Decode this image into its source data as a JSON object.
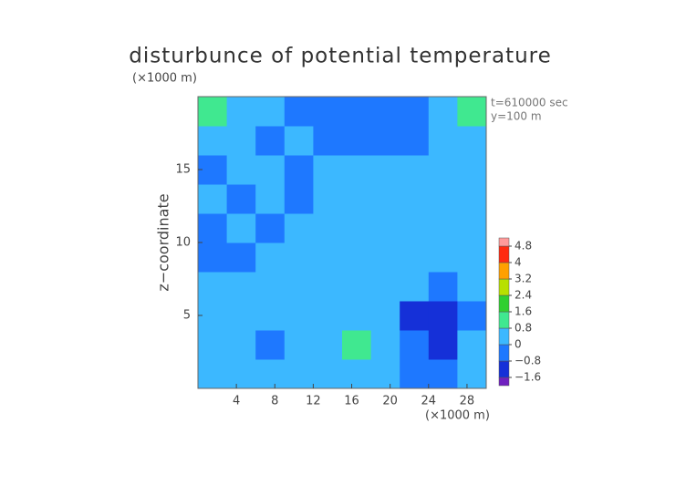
{
  "chart_data": {
    "type": "contour",
    "title": "disturbunce of potential temperature",
    "y_unit": "(×1000 m)",
    "x_unit": "(×1000 m)",
    "ylabel": "z−coordinate",
    "annotations": [
      "t=610000 sec",
      "y=100 m"
    ],
    "xlim": [
      0,
      30
    ],
    "ylim": [
      0,
      20
    ],
    "xticks": [
      4,
      8,
      12,
      16,
      20,
      24,
      28
    ],
    "yticks": [
      5,
      10,
      15
    ],
    "x": [
      1.5,
      4.5,
      7.5,
      10.5,
      13.5,
      16.5,
      19.5,
      22.5,
      25.5,
      28.5
    ],
    "z": [
      1,
      3,
      5,
      7,
      9,
      11,
      13,
      15,
      17,
      19
    ],
    "values": [
      [
        0.2,
        0.3,
        0.5,
        0.4,
        0.2,
        0.3,
        0.1,
        -0.2,
        -0.3,
        0.2
      ],
      [
        0.3,
        0.2,
        -0.3,
        0.6,
        0.3,
        0.8,
        0.3,
        -0.6,
        -0.9,
        0.1
      ],
      [
        0.3,
        0.6,
        0.6,
        0.4,
        0.2,
        0.3,
        0.2,
        -0.9,
        -1.6,
        -0.2
      ],
      [
        0.2,
        0.3,
        0.2,
        0.3,
        0.4,
        0.3,
        0.2,
        0.3,
        -0.8,
        0.2
      ],
      [
        -0.5,
        -0.3,
        0.2,
        0.4,
        0.3,
        0.1,
        0.3,
        0.2,
        0.1,
        0.3
      ],
      [
        -0.3,
        0.2,
        -0.4,
        0.3,
        0.4,
        0.2,
        0.4,
        0.2,
        0.2,
        0.2
      ],
      [
        0.1,
        -0.5,
        0.3,
        -0.4,
        0.4,
        0.3,
        0.4,
        0.1,
        0.3,
        0.2
      ],
      [
        -0.4,
        0.3,
        0.2,
        -0.3,
        0.4,
        0.2,
        0.2,
        0.3,
        0.3,
        0.2
      ],
      [
        0.3,
        0.2,
        -0.4,
        0.2,
        -0.3,
        -0.4,
        -0.2,
        -0.3,
        0.2,
        0.3
      ],
      [
        1.0,
        0.4,
        0.3,
        -0.2,
        -0.6,
        -0.8,
        -0.8,
        -0.6,
        0.4,
        0.8
      ]
    ],
    "colorbar": {
      "levels": [
        -2.0,
        -1.6,
        -0.8,
        0,
        0.8,
        1.6,
        2.4,
        3.2,
        4,
        4.8,
        5.2
      ],
      "colors": [
        "#7020c0",
        "#1530d8",
        "#1e78ff",
        "#3cb8ff",
        "#40e890",
        "#30d030",
        "#b8e000",
        "#ffa000",
        "#ff2a10",
        "#ff9a9a"
      ],
      "ticks": [
        {
          "value": -1.6,
          "label": "−1.6"
        },
        {
          "value": -0.8,
          "label": "−0.8"
        },
        0,
        0.8,
        1.6,
        2.4,
        3.2,
        4,
        4.8
      ]
    }
  }
}
